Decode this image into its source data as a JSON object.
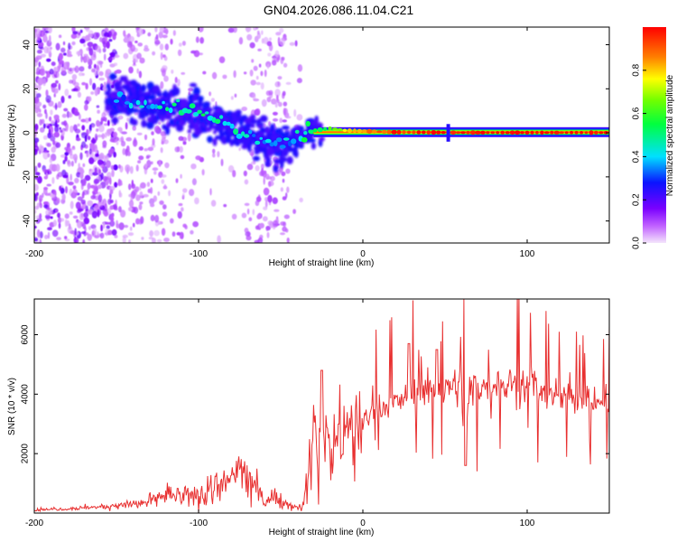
{
  "title": "GN04.2026.086.11.04.C21",
  "chart_data": [
    {
      "type": "heatmap",
      "xlabel": "Height of straight line (km)",
      "ylabel": "Frequency (Hz)",
      "xlim": [
        -200,
        150
      ],
      "ylim": [
        -50,
        48
      ],
      "xticks": [
        -200,
        -100,
        0,
        100
      ],
      "yticks": [
        -40,
        -20,
        0,
        20,
        40
      ],
      "grid": false,
      "colorbar": {
        "label": "Normalized spectral amplitude",
        "ticks": [
          0.0,
          0.2,
          0.4,
          0.6,
          0.8
        ],
        "range": [
          0,
          1
        ],
        "colormap": "hsv (magenta - blue - cyan - green - yellow - red)"
      },
      "ridge": {
        "x": [
          -150,
          -140,
          -130,
          -120,
          -110,
          -100,
          -90,
          -80,
          -70,
          -60,
          -50,
          -40,
          -35,
          -30,
          -20,
          -10,
          0,
          10,
          20,
          40,
          60,
          80,
          100,
          150
        ],
        "frequency": [
          16,
          15,
          13,
          12,
          10,
          9,
          6,
          3,
          0,
          -3,
          -6,
          -2,
          0,
          1,
          2,
          1,
          0.8,
          0.5,
          0.3,
          0.2,
          0.1,
          0.1,
          0.1,
          0.1
        ],
        "amplitude": [
          0.25,
          0.3,
          0.35,
          0.38,
          0.4,
          0.42,
          0.4,
          0.38,
          0.35,
          0.32,
          0.3,
          0.35,
          0.45,
          0.5,
          0.6,
          0.75,
          0.85,
          0.9,
          0.95,
          1.0,
          1.0,
          1.0,
          1.0,
          1.0
        ]
      }
    },
    {
      "type": "line",
      "xlabel": "Height of straight line (km)",
      "ylabel": "SNR (10 * v/v)",
      "xlim": [
        -200,
        150
      ],
      "ylim": [
        0,
        7200
      ],
      "xticks": [
        -200,
        -100,
        0,
        100
      ],
      "yticks": [
        2000,
        4000,
        6000
      ],
      "grid": false,
      "series": [
        {
          "color": "#e83030",
          "x": [
            -200,
            -190,
            -180,
            -170,
            -160,
            -150,
            -140,
            -130,
            -125,
            -120,
            -110,
            -100,
            -90,
            -80,
            -75,
            -70,
            -65,
            -60,
            -55,
            -50,
            -45,
            -40,
            -37,
            -35,
            -32,
            -30,
            -28,
            -25,
            -20,
            -15,
            -10,
            -5,
            0,
            5,
            10,
            15,
            20,
            25,
            30,
            35,
            40,
            45,
            50,
            55,
            60,
            62,
            65,
            70,
            75,
            80,
            85,
            90,
            95,
            100,
            105,
            110,
            115,
            120,
            125,
            130,
            135,
            140,
            145,
            150
          ],
          "y": [
            100,
            130,
            150,
            180,
            220,
            260,
            300,
            400,
            500,
            600,
            500,
            600,
            800,
            1100,
            1500,
            1200,
            900,
            600,
            500,
            400,
            300,
            200,
            150,
            700,
            1800,
            2400,
            2800,
            2600,
            2300,
            2600,
            2700,
            2900,
            3000,
            3300,
            3500,
            3700,
            3700,
            3800,
            4000,
            4100,
            4100,
            4200,
            4200,
            4250,
            4250,
            2000,
            4200,
            4300,
            4250,
            4300,
            4350,
            4300,
            4250,
            4300,
            4200,
            4100,
            4000,
            3900,
            3900,
            3850,
            3850,
            3800,
            3750,
            3700
          ]
        }
      ]
    }
  ]
}
